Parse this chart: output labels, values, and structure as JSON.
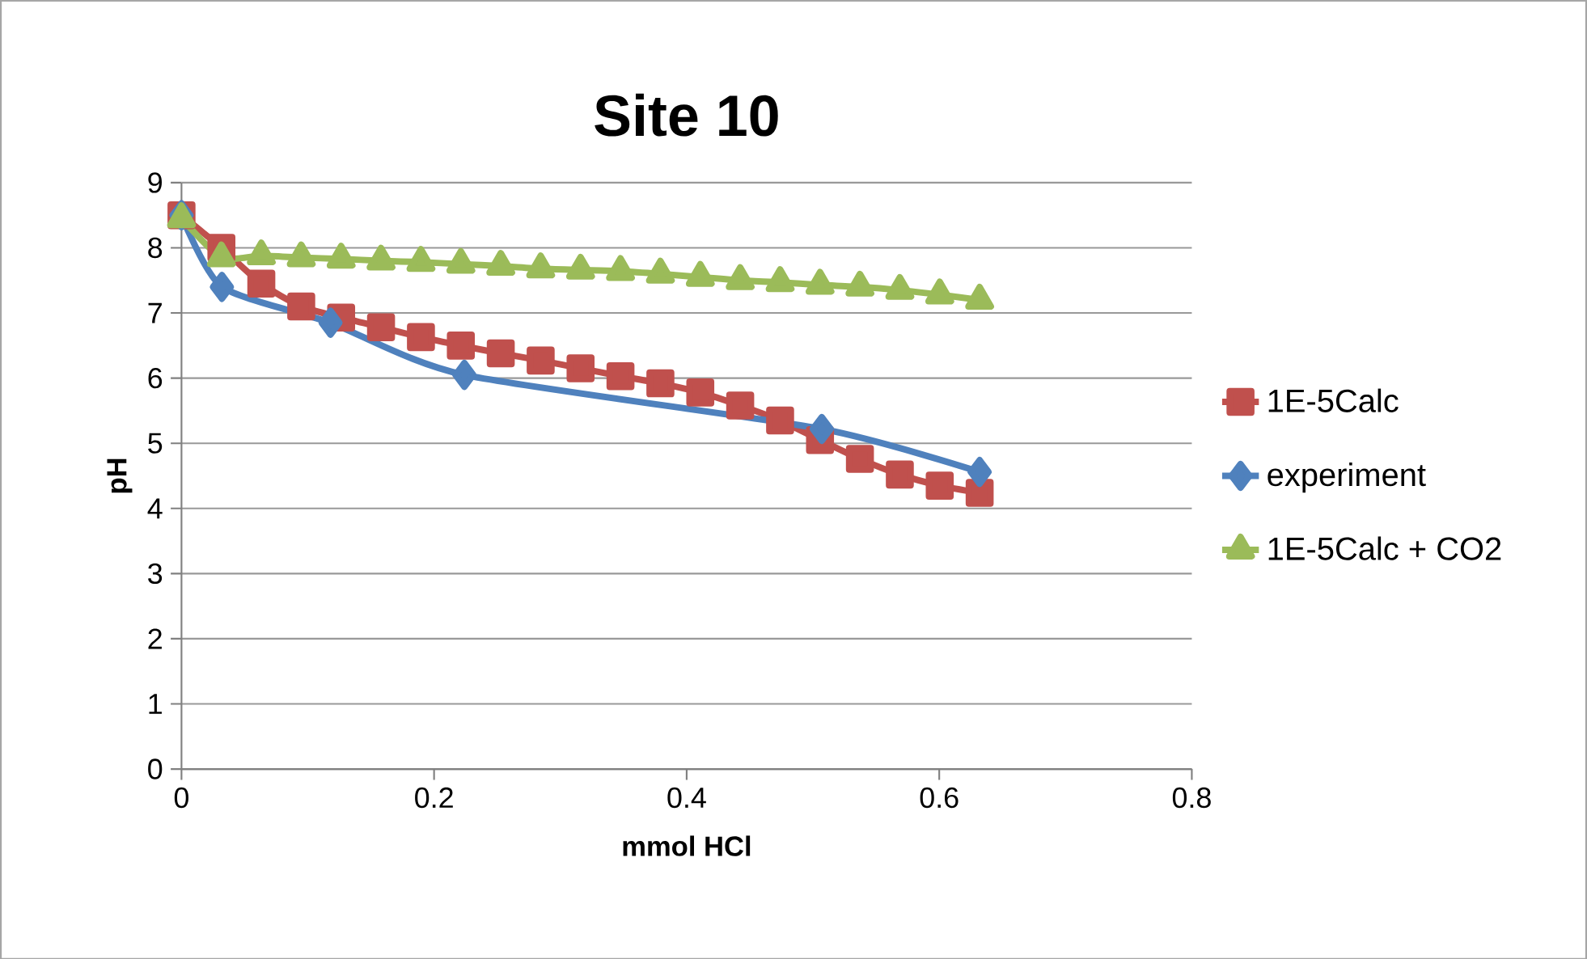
{
  "chart_data": {
    "type": "line",
    "title": "Site 10",
    "xlabel": "mmol HCl",
    "ylabel": "pH",
    "xlim": [
      0,
      0.8
    ],
    "xticks": [
      0,
      0.2,
      0.4,
      0.6,
      0.8
    ],
    "ylim": [
      0,
      9
    ],
    "yticks": [
      0,
      1,
      2,
      3,
      4,
      5,
      6,
      7,
      8,
      9
    ],
    "grid": "y",
    "legend": "right",
    "series": [
      {
        "name": "1E-5Calc",
        "color": "#c0504d",
        "marker": "square",
        "x": [
          0,
          0.0316,
          0.0632,
          0.0948,
          0.1264,
          0.158,
          0.1896,
          0.2212,
          0.2528,
          0.2844,
          0.316,
          0.3476,
          0.3792,
          0.4108,
          0.4424,
          0.474,
          0.5056,
          0.5372,
          0.5688,
          0.6004,
          0.632
        ],
        "values": [
          8.5,
          8.0,
          7.45,
          7.1,
          6.93,
          6.78,
          6.63,
          6.5,
          6.38,
          6.27,
          6.15,
          6.03,
          5.92,
          5.78,
          5.58,
          5.35,
          5.05,
          4.76,
          4.52,
          4.35,
          4.24
        ]
      },
      {
        "name": "experiment",
        "color": "#4f81bd",
        "marker": "diamond",
        "x": [
          0,
          0.032,
          0.118,
          0.224,
          0.507,
          0.632
        ],
        "values": [
          8.5,
          7.4,
          6.85,
          6.05,
          5.22,
          4.56
        ]
      },
      {
        "name": "1E-5Calc + CO2",
        "color": "#9bbb59",
        "marker": "triangle",
        "x": [
          0,
          0.0316,
          0.0632,
          0.0948,
          0.1264,
          0.158,
          0.1896,
          0.2212,
          0.2528,
          0.2844,
          0.316,
          0.3476,
          0.3792,
          0.4108,
          0.4424,
          0.474,
          0.5056,
          0.5372,
          0.5688,
          0.6004,
          0.632
        ],
        "values": [
          8.45,
          7.85,
          7.88,
          7.85,
          7.83,
          7.8,
          7.78,
          7.75,
          7.72,
          7.68,
          7.66,
          7.64,
          7.6,
          7.55,
          7.5,
          7.47,
          7.43,
          7.4,
          7.35,
          7.28,
          7.2
        ]
      }
    ]
  }
}
